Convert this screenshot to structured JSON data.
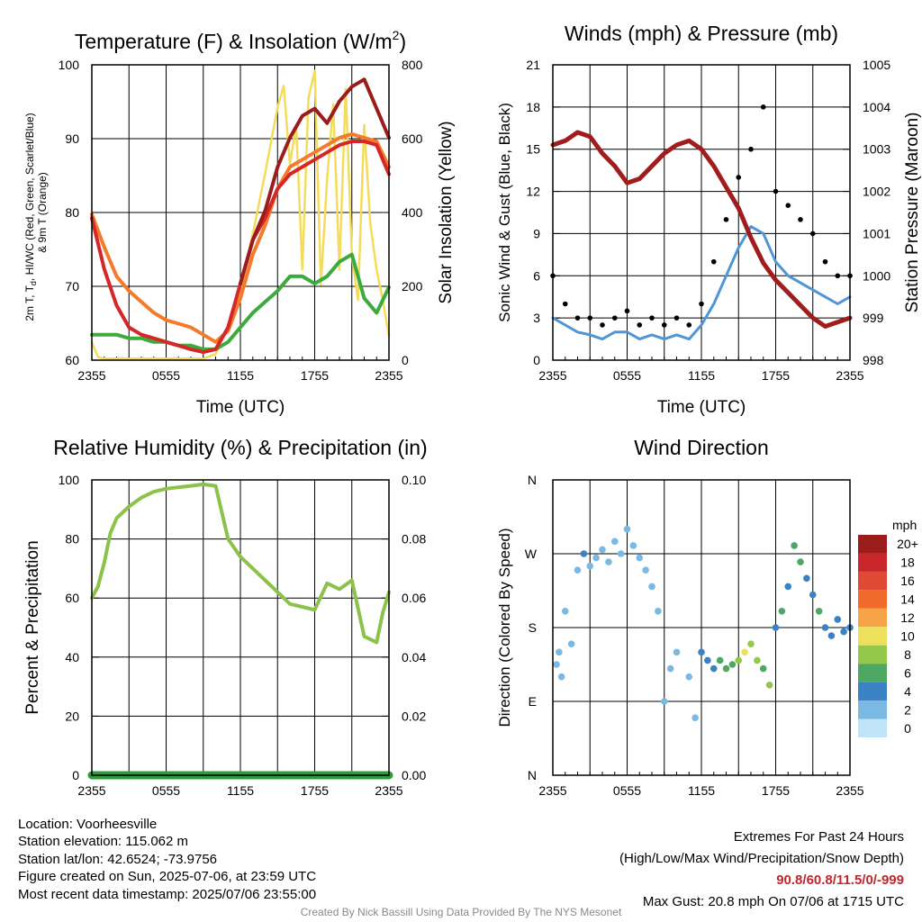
{
  "colors": {
    "temp_red": "#d62728",
    "dewpoint_green": "#3cab3c",
    "heat_index_scarlet": "#9b1c1c",
    "temp_9m_orange": "#f47a2c",
    "insolation_yellow": "#f4dc5a",
    "wind_blue": "#4f96d6",
    "gust_black": "#000000",
    "pressure_maroon": "#a11c1c",
    "rh_green": "#8cc24a",
    "precip_green": "#2e9b3a"
  },
  "chart_data": [
    {
      "type": "line",
      "title_main": "Temperature (F) & Insolation (W/m",
      "title_sup": "2",
      "title_end": ")",
      "xlabel": "Time (UTC)",
      "ylabel_lines": [
        "2m T, T",
        "d",
        ", HI/WC (Red, Green, Scarlet/Blue)",
        "& 9m T (Orange)"
      ],
      "ylabel_right": "Solar Insolation (Yellow)",
      "x_ticks": [
        "2355",
        "0555",
        "1155",
        "1755",
        "2355"
      ],
      "y_ticks": [
        "60",
        "70",
        "80",
        "90",
        "100"
      ],
      "ylim": [
        59.5,
        100
      ],
      "y_right_ticks": [
        "0",
        "200",
        "400",
        "600",
        "800"
      ],
      "y_right_lim": [
        0,
        980
      ],
      "series": [
        {
          "key": "temp_red",
          "x": [
            0,
            1,
            2,
            3,
            4,
            5,
            6,
            7,
            8,
            9,
            10,
            11,
            12,
            13,
            14,
            15,
            16,
            17,
            18,
            19,
            20,
            21,
            22,
            23,
            24
          ],
          "y": [
            79,
            72,
            67,
            64,
            63,
            62.5,
            62,
            61.5,
            61,
            60.6,
            61,
            64,
            70,
            76,
            79,
            83,
            85,
            86,
            87,
            88,
            89,
            89.5,
            89.5,
            89,
            85
          ]
        },
        {
          "key": "temp_9m_orange",
          "x": [
            0,
            1,
            2,
            3,
            4,
            5,
            6,
            7,
            8,
            9,
            10,
            11,
            12,
            13,
            14,
            15,
            16,
            17,
            18,
            19,
            20,
            21,
            22,
            23,
            24
          ],
          "y": [
            79.5,
            75,
            71,
            69,
            67.5,
            66,
            65,
            64.5,
            64,
            63,
            62,
            63.5,
            68,
            74,
            78,
            83,
            86,
            87,
            88,
            89,
            90,
            90.5,
            90,
            89.5,
            86
          ]
        },
        {
          "key": "heat_index_scarlet",
          "x": [
            12,
            13,
            14,
            15,
            16,
            17,
            18,
            19,
            20,
            21,
            22,
            23,
            24
          ],
          "y": [
            70,
            76,
            80,
            86,
            90,
            93,
            94,
            92,
            95,
            97,
            98,
            94,
            90
          ]
        },
        {
          "key": "dewpoint_green",
          "x": [
            0,
            1,
            2,
            3,
            4,
            5,
            6,
            7,
            8,
            9,
            10,
            11,
            12,
            13,
            14,
            15,
            16,
            17,
            18,
            19,
            20,
            21,
            22,
            23,
            24
          ],
          "y": [
            63,
            63,
            63,
            62.5,
            62.5,
            62,
            62,
            61.5,
            61.5,
            61,
            61,
            62,
            64,
            66,
            67.5,
            69,
            71,
            71,
            70,
            71,
            73,
            74,
            68,
            66,
            69.5
          ]
        },
        {
          "key": "insolation_yellow",
          "axis": "right",
          "x": [
            0,
            0.5,
            1,
            3,
            6,
            9,
            10,
            11,
            12,
            13,
            14,
            15,
            15.5,
            16,
            16.5,
            17,
            17.5,
            18,
            18.5,
            19,
            19.5,
            20,
            20.5,
            21,
            21.5,
            22,
            22.5,
            23,
            23.5,
            24
          ],
          "y": [
            60,
            10,
            5,
            5,
            5,
            5,
            20,
            110,
            230,
            420,
            620,
            840,
            910,
            650,
            780,
            300,
            870,
            960,
            250,
            600,
            850,
            300,
            900,
            350,
            200,
            780,
            450,
            300,
            200,
            80
          ]
        }
      ]
    },
    {
      "type": "line",
      "title": "Winds (mph) & Pressure (mb)",
      "xlabel": "Time (UTC)",
      "ylabel": "Sonic Wind & Gust (Blue, Black)",
      "ylabel_right": "Station Pressure (Maroon)",
      "x_ticks": [
        "2355",
        "0555",
        "1155",
        "1755",
        "2355"
      ],
      "y_ticks": [
        "0",
        "3",
        "6",
        "9",
        "12",
        "15",
        "18",
        "21"
      ],
      "ylim": [
        0,
        21
      ],
      "y_right_ticks": [
        "998",
        "999",
        "1000",
        "1001",
        "1002",
        "1003",
        "1004",
        "1005"
      ],
      "y_right_lim": [
        998,
        1005
      ],
      "series": [
        {
          "key": "pressure_maroon",
          "axis": "right",
          "x": [
            0,
            1,
            2,
            3,
            4,
            5,
            6,
            7,
            8,
            9,
            10,
            11,
            12,
            13,
            14,
            15,
            16,
            17,
            18,
            19,
            20,
            21,
            22,
            23,
            24
          ],
          "y": [
            1003.1,
            1003.2,
            1003.4,
            1003.3,
            1002.9,
            1002.6,
            1002.2,
            1002.3,
            1002.6,
            1002.9,
            1003.1,
            1003.2,
            1003.0,
            1002.6,
            1002.1,
            1001.6,
            1000.9,
            1000.3,
            999.9,
            999.6,
            999.3,
            999.0,
            998.8,
            998.9,
            999.0
          ]
        },
        {
          "key": "wind_blue",
          "x": [
            0,
            1,
            2,
            3,
            4,
            5,
            6,
            7,
            8,
            9,
            10,
            11,
            12,
            13,
            14,
            15,
            16,
            17,
            18,
            19,
            20,
            21,
            22,
            23,
            24
          ],
          "y": [
            3,
            2.5,
            2,
            1.8,
            1.5,
            2,
            2,
            1.5,
            1.8,
            1.5,
            1.8,
            1.5,
            2.5,
            4,
            6,
            8,
            9.5,
            9,
            7,
            6,
            5.5,
            5,
            4.5,
            4,
            4.5
          ]
        },
        {
          "key": "gust_black",
          "marker": "dot",
          "x": [
            0,
            1,
            2,
            3,
            4,
            5,
            6,
            7,
            8,
            9,
            10,
            11,
            12,
            13,
            14,
            15,
            16,
            17,
            18,
            19,
            20,
            21,
            22,
            23,
            24
          ],
          "y": [
            6,
            4,
            3,
            3,
            2.5,
            3,
            3.5,
            2.5,
            3,
            2.5,
            3,
            2.5,
            4,
            7,
            10,
            13,
            15,
            18,
            12,
            11,
            10,
            9,
            7,
            6,
            6
          ]
        }
      ]
    },
    {
      "type": "line",
      "title": "Relative Humidity (%) & Precipitation (in)",
      "ylabel": "Percent & Precipitation",
      "x_ticks": [
        "2355",
        "0555",
        "1155",
        "1755",
        "2355"
      ],
      "y_ticks": [
        "0",
        "20",
        "40",
        "60",
        "80",
        "100"
      ],
      "ylim": [
        0,
        100
      ],
      "y_right_ticks": [
        "0.00",
        "0.02",
        "0.04",
        "0.06",
        "0.08",
        "0.10"
      ],
      "y_right_lim": [
        0,
        0.1
      ],
      "series": [
        {
          "key": "rh_green",
          "x": [
            0,
            0.5,
            1,
            1.5,
            2,
            3,
            4,
            5,
            6,
            7,
            8,
            9,
            10,
            11,
            12,
            13,
            14,
            15,
            16,
            17,
            18,
            19,
            20,
            21,
            22,
            23,
            23.5,
            24
          ],
          "y": [
            60,
            64,
            72,
            82,
            87,
            91,
            94,
            96,
            97,
            97.5,
            98,
            98.5,
            98,
            80,
            74,
            70,
            66,
            62,
            58,
            57,
            56,
            65,
            63,
            66,
            47,
            45,
            55,
            62
          ]
        },
        {
          "key": "precip_green",
          "axis": "right",
          "x": [
            0,
            24
          ],
          "y": [
            0,
            0
          ]
        }
      ]
    },
    {
      "type": "scatter",
      "title": "Wind Direction",
      "ylabel": "Direction (Colored By Speed)",
      "x_ticks": [
        "2355",
        "0555",
        "1155",
        "1755",
        "2355"
      ],
      "y_ticks": [
        "N",
        "E",
        "S",
        "W",
        "N"
      ],
      "ylim": [
        0,
        360
      ],
      "colorbar_title": "mph",
      "colorbar_labels": [
        "20+",
        "18",
        "16",
        "14",
        "12",
        "10",
        "8",
        "6",
        "4",
        "2",
        "0"
      ],
      "colorbar_colors": [
        "#9c1c1c",
        "#c8262a",
        "#e04a35",
        "#f06a2c",
        "#f7a447",
        "#ece05c",
        "#94c84a",
        "#4ea864",
        "#3b82c4",
        "#7ab9e4",
        "#bfe3f7"
      ],
      "points": [
        [
          0.3,
          135,
          2
        ],
        [
          0.5,
          150,
          2
        ],
        [
          0.7,
          120,
          2
        ],
        [
          1,
          200,
          2
        ],
        [
          1.5,
          160,
          2
        ],
        [
          2,
          250,
          2
        ],
        [
          2.5,
          270,
          3
        ],
        [
          3,
          255,
          2
        ],
        [
          3.5,
          265,
          2
        ],
        [
          4,
          275,
          1
        ],
        [
          4.5,
          260,
          2
        ],
        [
          5,
          285,
          1
        ],
        [
          5.5,
          270,
          2
        ],
        [
          6,
          300,
          1
        ],
        [
          6.5,
          280,
          2
        ],
        [
          7,
          265,
          2
        ],
        [
          7.5,
          250,
          1
        ],
        [
          8,
          230,
          1
        ],
        [
          8.5,
          200,
          1
        ],
        [
          9,
          90,
          1
        ],
        [
          9.5,
          130,
          1
        ],
        [
          10,
          150,
          2
        ],
        [
          11,
          120,
          1
        ],
        [
          11.5,
          70,
          2
        ],
        [
          12,
          150,
          3
        ],
        [
          12.5,
          140,
          4
        ],
        [
          13,
          130,
          4
        ],
        [
          13.5,
          140,
          6
        ],
        [
          14,
          130,
          5
        ],
        [
          14.5,
          135,
          6
        ],
        [
          15,
          140,
          8
        ],
        [
          15.5,
          150,
          9
        ],
        [
          16,
          160,
          8
        ],
        [
          16.5,
          140,
          7
        ],
        [
          17,
          130,
          6
        ],
        [
          17.5,
          110,
          7
        ],
        [
          18,
          180,
          4
        ],
        [
          18.5,
          200,
          5
        ],
        [
          19,
          230,
          4
        ],
        [
          19.5,
          280,
          5
        ],
        [
          20,
          260,
          6
        ],
        [
          20.5,
          240,
          4
        ],
        [
          21,
          220,
          4
        ],
        [
          21.5,
          200,
          5
        ],
        [
          22,
          180,
          4
        ],
        [
          22.5,
          170,
          3
        ],
        [
          23,
          190,
          3
        ],
        [
          23.5,
          175,
          4
        ],
        [
          24,
          180,
          3
        ]
      ]
    }
  ],
  "footer": {
    "location": "Location: Voorheesville",
    "elevation": "Station elevation: 115.062 m",
    "latlon": "Station lat/lon: 42.6524; -73.9756",
    "created": "Figure created on Sun, 2025-07-06, at 23:59 UTC",
    "recent": "Most recent data timestamp: 2025/07/06 23:55:00",
    "extremes_title": "Extremes For Past 24 Hours",
    "extremes_legend": "(High/Low/Max Wind/Precipitation/Snow Depth)",
    "extremes_values": "90.8/60.8/11.5/0/-999",
    "max_gust": "Max Gust: 20.8 mph On 07/06 at 1715 UTC",
    "credit": "Created By Nick Bassill Using Data Provided By The NYS Mesonet"
  }
}
